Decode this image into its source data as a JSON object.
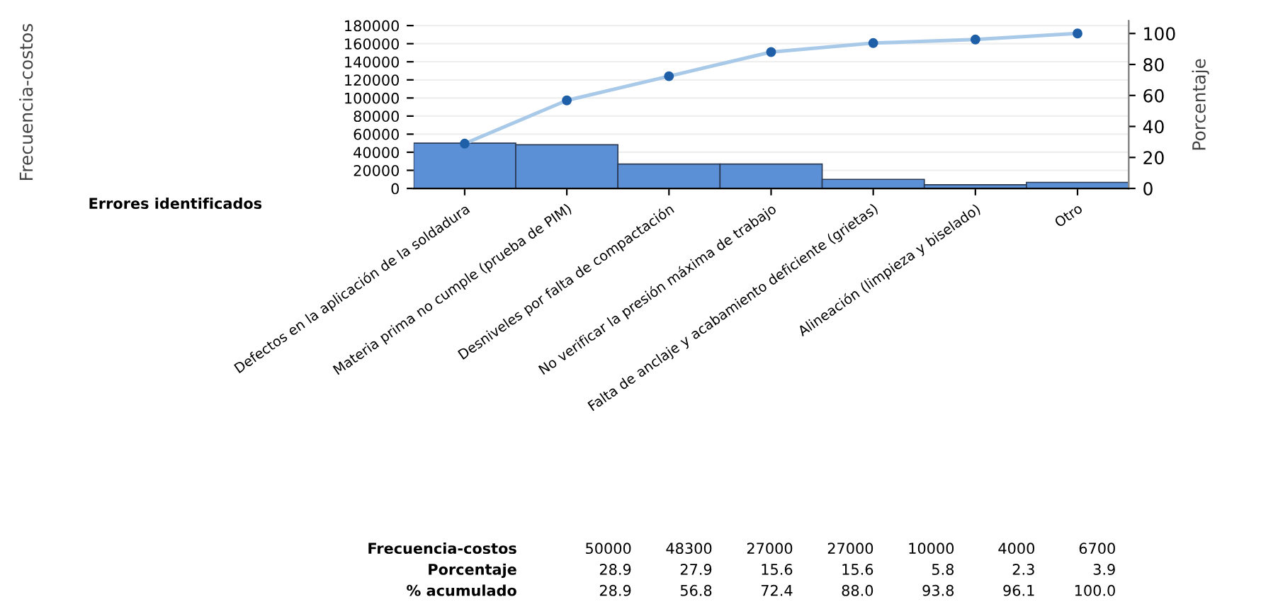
{
  "chart_data": {
    "type": "bar",
    "xlabel": "Errores identificados",
    "y2label": "Porcentaje",
    "categories": [
      "Defectos en la aplicación de la soldadura",
      "Materia prima no cumple (prueba de PIM)",
      "Desniveles por falta de compactación",
      "No verificar la presión máxima de trabajo",
      "Falta de anclaje y acabamiento deficiente (grietas)",
      "Alineación (limpieza y biselado)",
      "Otro"
    ],
    "series": [
      {
        "color": "#5b8fd6",
        "values": [
          50000,
          48300,
          27000,
          27000,
          10000,
          4000,
          6700
        ]
      },
      {
        "type": "line",
        "axis": "y2",
        "color": "#a9c9e8",
        "marker": "circle",
        "values": [
          28.9,
          56.8,
          72.4,
          88.0,
          93.8,
          96.1,
          100.0
        ]
      }
    ],
    "annotations": [
      "Frecuencia-costos",
      "Frecuencia-costos",
      "50000",
      "48300",
      "27000",
      "27000",
      "10000",
      "4000",
      "6700",
      "Porcentaje",
      "28.9",
      "27.9",
      "15.6",
      "15.6",
      "5.8",
      "2.3",
      "3.9",
      "% acumulado",
      "28.9",
      "56.8",
      "72.4",
      "88.0",
      "93.8",
      "96.1",
      "100.0"
    ],
    "ylim": [
      0,
      185000
    ],
    "yticks": [
      0,
      20000,
      40000,
      60000,
      80000,
      100000,
      120000,
      140000,
      160000,
      180000
    ],
    "y2lim": [
      0,
      108
    ],
    "y2ticks": [
      0,
      20,
      40,
      60,
      80,
      100
    ],
    "grid": "y"
  }
}
